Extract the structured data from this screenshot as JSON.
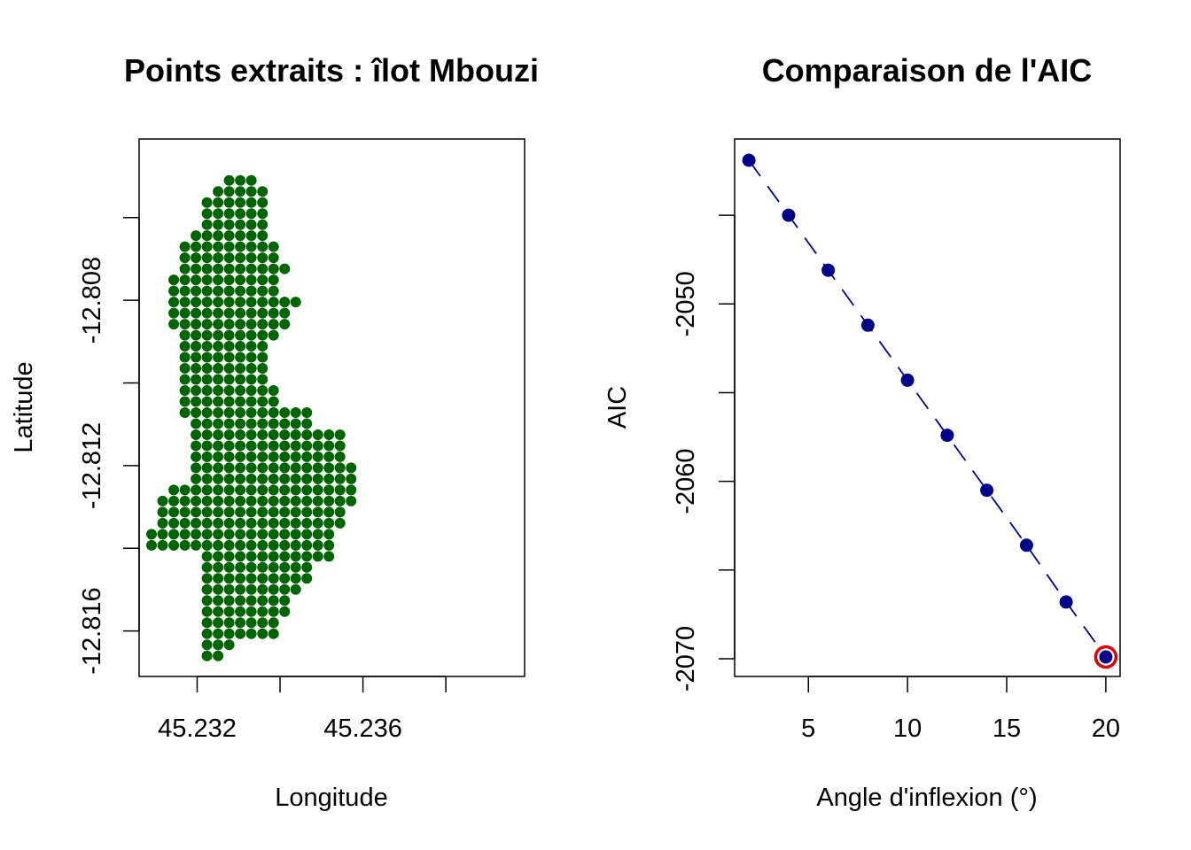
{
  "chart_data": [
    {
      "type": "scatter",
      "title": "Points extraits : îlot Mbouzi",
      "xlabel": "Longitude",
      "ylabel": "Latitude",
      "xlim": [
        45.2306,
        45.2399
      ],
      "ylim": [
        -12.8171,
        -12.8041
      ],
      "xticks": [
        45.232,
        45.234,
        45.236,
        45.238
      ],
      "xtick_labels": [
        "45.232",
        "",
        "45.236",
        ""
      ],
      "yticks": [
        -12.808,
        -12.81,
        -12.812,
        -12.814,
        -12.816,
        -12.806
      ],
      "ytick_labels": [
        "-12.808",
        "",
        "-12.812",
        "",
        "-12.816",
        ""
      ],
      "point_color": "#006400",
      "grid": false,
      "lon_start": 45.2309,
      "lat_start": -12.8051,
      "lon_step": 0.0002675,
      "lat_step": 0.0002675,
      "rows": [
        [
          [
            7,
            9
          ]
        ],
        [
          [
            6,
            10
          ]
        ],
        [
          [
            5,
            10
          ]
        ],
        [
          [
            5,
            10
          ]
        ],
        [
          [
            5,
            10
          ]
        ],
        [
          [
            4,
            10
          ]
        ],
        [
          [
            3,
            11
          ]
        ],
        [
          [
            3,
            11
          ]
        ],
        [
          [
            3,
            12
          ]
        ],
        [
          [
            2,
            11
          ]
        ],
        [
          [
            2,
            11
          ]
        ],
        [
          [
            2,
            12
          ],
          [
            13,
            13
          ]
        ],
        [
          [
            2,
            12
          ]
        ],
        [
          [
            2,
            12
          ]
        ],
        [
          [
            3,
            11
          ]
        ],
        [
          [
            3,
            10
          ]
        ],
        [
          [
            3,
            10
          ]
        ],
        [
          [
            3,
            10
          ]
        ],
        [
          [
            3,
            10
          ]
        ],
        [
          [
            3,
            11
          ]
        ],
        [
          [
            3,
            11
          ]
        ],
        [
          [
            3,
            14
          ]
        ],
        [
          [
            4,
            14
          ]
        ],
        [
          [
            4,
            17
          ]
        ],
        [
          [
            4,
            17
          ]
        ],
        [
          [
            4,
            17
          ]
        ],
        [
          [
            4,
            18
          ]
        ],
        [
          [
            4,
            18
          ]
        ],
        [
          [
            2,
            18
          ]
        ],
        [
          [
            1,
            18
          ]
        ],
        [
          [
            1,
            17
          ]
        ],
        [
          [
            1,
            17
          ]
        ],
        [
          [
            0,
            16
          ]
        ],
        [
          [
            0,
            16
          ]
        ],
        [
          [
            5,
            16
          ]
        ],
        [
          [
            5,
            14
          ]
        ],
        [
          [
            5,
            14
          ]
        ],
        [
          [
            5,
            13
          ]
        ],
        [
          [
            5,
            12
          ]
        ],
        [
          [
            5,
            12
          ]
        ],
        [
          [
            5,
            11
          ]
        ],
        [
          [
            5,
            11
          ]
        ],
        [
          [
            5,
            7
          ]
        ],
        [
          [
            5,
            6
          ]
        ]
      ],
      "row_offsets": [
        7,
        6,
        6,
        6,
        6,
        5,
        4,
        4,
        4,
        3,
        3,
        3,
        3,
        3,
        3,
        3,
        3,
        3,
        3,
        3,
        3,
        3,
        4,
        4,
        4,
        4,
        4,
        4,
        2,
        1,
        1,
        1,
        0,
        0,
        4,
        4,
        4,
        4,
        5,
        5,
        5,
        5,
        5,
        5
      ]
    },
    {
      "type": "line",
      "title": "Comparaison de l'AIC",
      "xlabel": "Angle d'inflexion (°)",
      "ylabel": "AIC",
      "x": [
        2,
        4,
        6,
        8,
        10,
        12,
        14,
        16,
        18,
        20
      ],
      "y": [
        -2041.9,
        -2045.0,
        -2048.1,
        -2051.2,
        -2054.3,
        -2057.4,
        -2060.5,
        -2063.6,
        -2066.8,
        -2069.9
      ],
      "xlim": [
        1.28,
        20.72
      ],
      "ylim": [
        -2071.0,
        -2040.7
      ],
      "xticks": [
        5,
        10,
        15,
        20
      ],
      "yticks": [
        -2045,
        -2050,
        -2055,
        -2060,
        -2065,
        -2070
      ],
      "ytick_labels": [
        "",
        "-2050",
        "",
        "-2060",
        "",
        "-2070"
      ],
      "line_style": "dashed",
      "point_color": "#00008B",
      "line_color": "#00008B",
      "highlight": {
        "x": 20,
        "y": -2069.9,
        "color": "#E00000"
      },
      "grid": false
    }
  ]
}
